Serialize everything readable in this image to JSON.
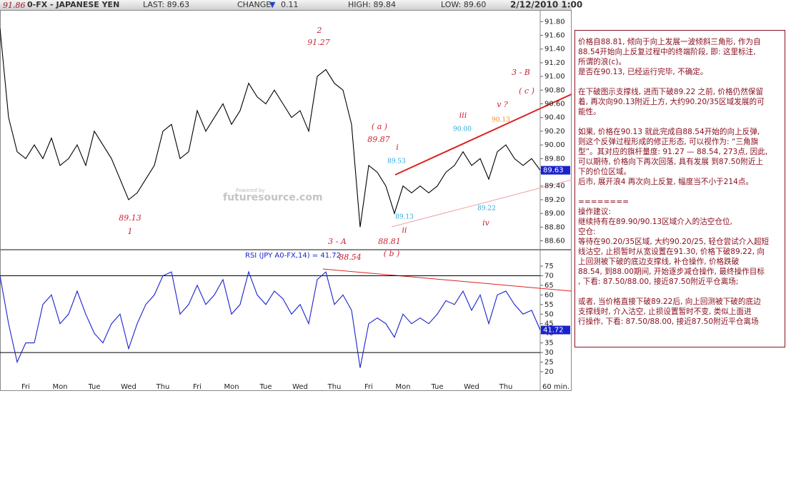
{
  "header": {
    "symbol": "0-FX - JAPANESE YEN",
    "last": "LAST: 89.63",
    "change_label": "CHANGE:",
    "change_arrow": "▼",
    "change": "0.11",
    "high": "HIGH: 89.84",
    "low": "LOW: 89.60",
    "datetime": "2/12/2010 1:00"
  },
  "chart_data": [
    {
      "type": "line",
      "color": "#000000",
      "values": [
        91.7,
        90.4,
        89.9,
        89.8,
        90.0,
        89.8,
        90.1,
        89.7,
        89.8,
        90.0,
        89.7,
        90.2,
        90.0,
        89.8,
        89.5,
        89.2,
        89.3,
        89.5,
        89.7,
        90.2,
        90.3,
        89.8,
        89.9,
        90.5,
        90.2,
        90.4,
        90.6,
        90.3,
        90.5,
        90.9,
        90.7,
        90.6,
        90.8,
        90.6,
        90.4,
        90.5,
        90.2,
        91.0,
        91.1,
        90.9,
        90.8,
        90.3,
        88.8,
        89.7,
        89.6,
        89.4,
        89.0,
        89.4,
        89.3,
        89.4,
        89.3,
        89.4,
        89.6,
        89.7,
        89.9,
        89.7,
        89.8,
        89.5,
        89.9,
        90.0,
        89.8,
        89.7,
        89.8,
        89.63
      ],
      "ylim": [
        88.47,
        91.97
      ],
      "yticks": [
        {
          "value": 88.6,
          "label": "88.60"
        },
        {
          "value": 88.8,
          "label": "88.80"
        },
        {
          "value": 89.0,
          "label": "89.00"
        },
        {
          "value": 89.2,
          "label": "89.20"
        },
        {
          "value": 89.4,
          "label": "89.40"
        },
        {
          "value": 89.6,
          "label": "89.60"
        },
        {
          "value": 89.8,
          "label": "89.80"
        },
        {
          "value": 90.0,
          "label": "90.00"
        },
        {
          "value": 90.2,
          "label": "90.20"
        },
        {
          "value": 90.4,
          "label": "90.40"
        },
        {
          "value": 90.6,
          "label": "90.60"
        },
        {
          "value": 90.8,
          "label": "90.80"
        },
        {
          "value": 91.0,
          "label": "91.00"
        },
        {
          "value": 91.2,
          "label": "91.20"
        },
        {
          "value": 91.4,
          "label": "91.40"
        },
        {
          "value": 91.6,
          "label": "91.60"
        },
        {
          "value": 91.8,
          "label": "91.80"
        }
      ],
      "watermark_top": "Powered by",
      "watermark": "futuresource.com",
      "annotations": [
        {
          "text": "91.86",
          "color": "#a01828"
        },
        {
          "text": "2",
          "color": "#cc2233"
        },
        {
          "text": "91.27",
          "color": "#cc2233"
        },
        {
          "text": "3 - B",
          "color": "#cc2233"
        },
        {
          "text": "( c )",
          "color": "#cc2233"
        },
        {
          "text": "iii",
          "color": "#cc2233"
        },
        {
          "text": "v  ?",
          "color": "#cc2233"
        },
        {
          "text": "90.00",
          "color": "#2aa8d8"
        },
        {
          "text": "90.13",
          "color": "#ee8a22"
        },
        {
          "text": "( a )",
          "color": "#cc2233"
        },
        {
          "text": "89.87",
          "color": "#cc2233"
        },
        {
          "text": "i",
          "color": "#cc2233"
        },
        {
          "text": "89.53",
          "color": "#2aa8d8"
        },
        {
          "text": "89.13",
          "color": "#cc2233"
        },
        {
          "text": "1",
          "color": "#cc2233"
        },
        {
          "text": "89.13",
          "color": "#2aa8d8"
        },
        {
          "text": "ii",
          "color": "#cc2233"
        },
        {
          "text": "89.22",
          "color": "#2aa8d8"
        },
        {
          "text": "iv",
          "color": "#cc2233"
        },
        {
          "text": "3 - A",
          "color": "#cc2233"
        },
        {
          "text": "88.81",
          "color": "#cc2233"
        },
        {
          "text": "88.54",
          "color": "#cc2233"
        },
        {
          "text": "( b )",
          "color": "#cc2233"
        }
      ]
    },
    {
      "type": "line",
      "color": "#1a22cc",
      "label": "RSI (JPY A0-FX,14) = 41.72",
      "categories": [
        null,
        null,
        null,
        "Fri",
        null,
        null,
        null,
        "Mon",
        null,
        null,
        null,
        "Tue",
        null,
        null,
        null,
        "Wed",
        null,
        null,
        null,
        "Thu",
        null,
        null,
        null,
        "Fri",
        null,
        null,
        null,
        "Mon",
        null,
        null,
        null,
        "Tue",
        null,
        null,
        null,
        "Wed",
        null,
        null,
        null,
        "Thu",
        null,
        null,
        null,
        "Fri",
        null,
        null,
        null,
        "Mon",
        null,
        null,
        null,
        "Tue",
        null,
        null,
        null,
        "Wed",
        null,
        null,
        null,
        "Thu",
        null,
        null,
        null,
        null
      ],
      "values": [
        70,
        45,
        25,
        35,
        35,
        55,
        60,
        45,
        50,
        62,
        50,
        40,
        35,
        45,
        50,
        32,
        45,
        55,
        60,
        70,
        72,
        50,
        55,
        65,
        55,
        60,
        68,
        50,
        55,
        72,
        60,
        55,
        62,
        58,
        50,
        55,
        45,
        68,
        72,
        55,
        60,
        52,
        22,
        45,
        48,
        45,
        38,
        50,
        45,
        48,
        45,
        50,
        57,
        55,
        62,
        52,
        60,
        45,
        60,
        62,
        55,
        50,
        52,
        41.72
      ],
      "ylim": [
        15.9,
        81.7
      ],
      "yticks": [
        20,
        25,
        30,
        35,
        40,
        45,
        50,
        55,
        60,
        65,
        70,
        75
      ],
      "reference_lines": [
        30,
        70
      ],
      "timeframe": "60 min."
    }
  ],
  "commentary": {
    "paragraphs": [
      [
        "价格自88.81, 倾向于向上发展一波倾斜三角形, 作为自",
        "88.54开始向上反复过程中的终端阶段, 即: 这里标注,",
        "所谓的浪(c)。",
        "是否在90.13, 已经运行完毕, 不确定。"
      ],
      [
        "在下破图示支撑线, 进而下破89.22 之前, 价格仍然保留",
        "着, 再次向90.13附近上方, 大约90.20/35区域发展的可",
        "能性。"
      ],
      [
        "如果, 价格在90.13 就此完成自88.54开始的向上反弹,",
        "则这个反弹过程形成的修正形态, 可以视作为: “三角旗",
        "型”。其对应的旗杆量度: 91.27 — 88.54, 273点, 因此,",
        "可以期待, 价格向下再次回落, 具有发展 到87.50附近上",
        "下的价位区域。",
        "后市, 展开浪4 再次向上反复, 幅度当不小于214点。"
      ],
      [
        "========",
        "操作建议:",
        "继续持有在89.90/90.13区域介入的沽空仓位,",
        "空仓:",
        "等待在90.20/35区域, 大约90.20/25, 轻仓尝试介入超短",
        "线沽空, 止损暂时从宽设置在91.30, 价格下破89.22, 向",
        "上回测被下破的底边支撑线, 补仓操作, 价格跌破",
        "88.54, 到88.00期间, 开始逐步减仓操作, 最终操作目标",
        ", 下看: 87.50/88.00, 接近87.50附近平仓离场;"
      ],
      [
        "或者, 当价格直接下破89.22后, 向上回测被下破的底边",
        "支撑线时, 介入沽空, 止损设置暂时不变, 类似上面进",
        "行操作, 下看: 87.50/88.00, 接近87.50附近平仓离场"
      ]
    ]
  }
}
